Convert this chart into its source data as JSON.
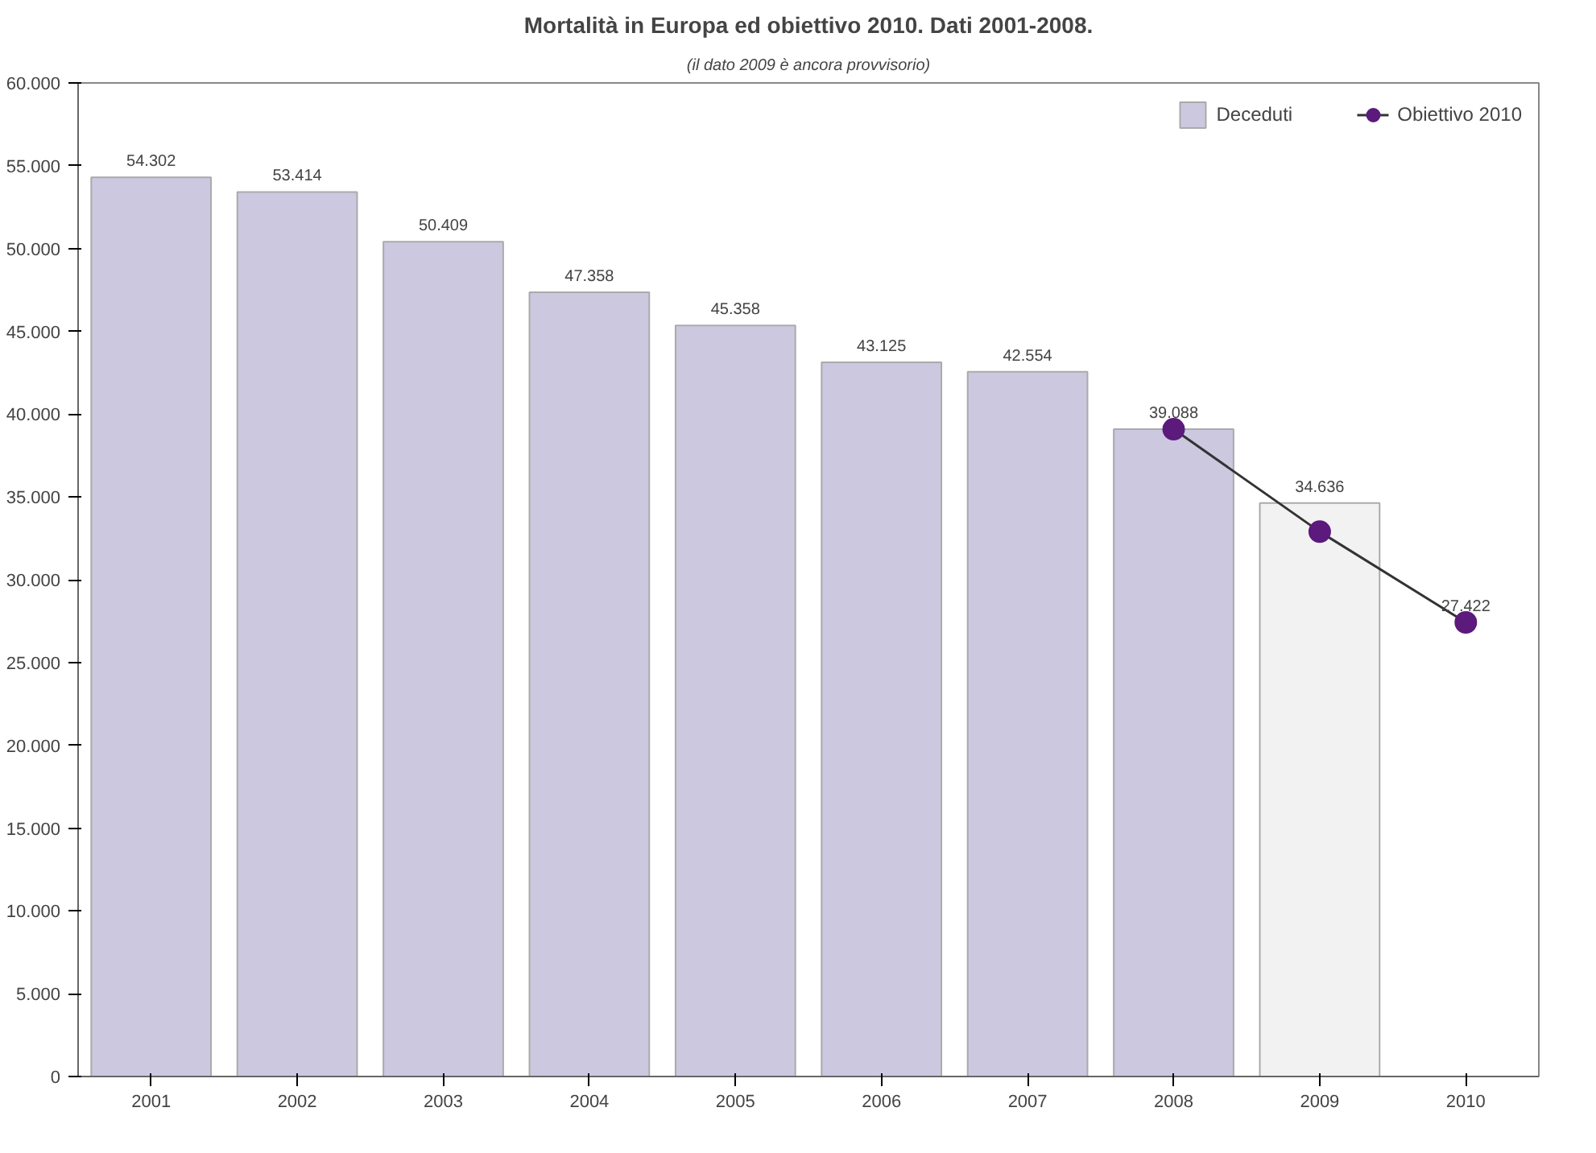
{
  "chart_data": {
    "type": "bar",
    "title": "Mortalità in Europa ed obiettivo 2010. Dati 2001-2008.",
    "subtitle": "(il dato 2009 è ancora provvisorio)",
    "categories": [
      "2001",
      "2002",
      "2003",
      "2004",
      "2005",
      "2006",
      "2007",
      "2008",
      "2009",
      "2010"
    ],
    "series": [
      {
        "name": "Deceduti",
        "color": "#ccc8e0",
        "colors": [
          null,
          null,
          null,
          null,
          null,
          null,
          null,
          null,
          "#f2f2f2",
          null
        ],
        "values": [
          54302,
          53414,
          50409,
          47358,
          45358,
          43125,
          42554,
          39088,
          34636,
          null
        ],
        "value_labels": [
          "54.302",
          "53.414",
          "50.409",
          "47.358",
          "45.358",
          "43.125",
          "42.554",
          "39.088",
          "34.636",
          null
        ]
      },
      {
        "name": "Obiettivo 2010",
        "type": "line",
        "color": "#5c1a7c",
        "marker": "circle",
        "values": [
          null,
          null,
          null,
          null,
          null,
          null,
          null,
          39088,
          32900,
          27422
        ],
        "value_labels": [
          null,
          null,
          null,
          null,
          null,
          null,
          null,
          null,
          null,
          "27.422"
        ]
      }
    ],
    "ylim": [
      0,
      60000
    ],
    "yticks": [
      {
        "value": 0,
        "label": "0"
      },
      {
        "value": 5000,
        "label": "5.000"
      },
      {
        "value": 10000,
        "label": "10.000"
      },
      {
        "value": 15000,
        "label": "15.000"
      },
      {
        "value": 20000,
        "label": "20.000"
      },
      {
        "value": 25000,
        "label": "25.000"
      },
      {
        "value": 30000,
        "label": "30.000"
      },
      {
        "value": 35000,
        "label": "35.000"
      },
      {
        "value": 40000,
        "label": "40.000"
      },
      {
        "value": 45000,
        "label": "45.000"
      },
      {
        "value": 50000,
        "label": "50.000"
      },
      {
        "value": 55000,
        "label": "55.000"
      },
      {
        "value": 60000,
        "label": "60.000"
      }
    ],
    "grid": false,
    "legend": "top right"
  }
}
